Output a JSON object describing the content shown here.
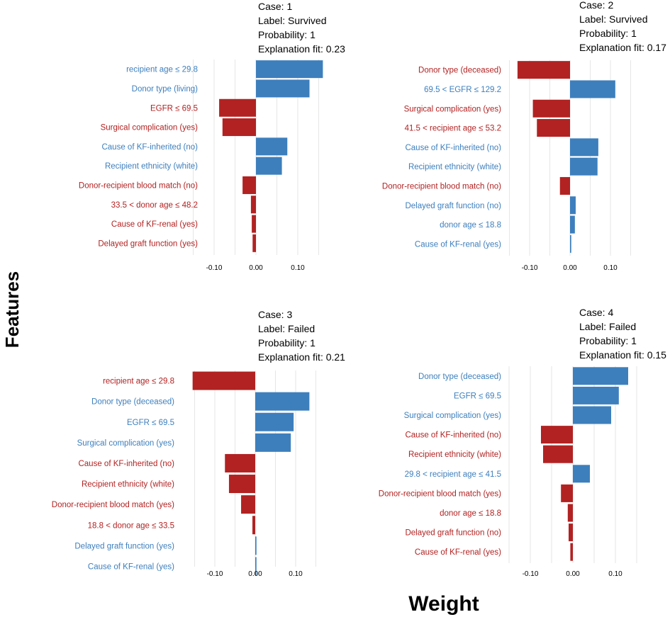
{
  "figure": {
    "y_axis_title": "Features",
    "x_axis_title": "Weight"
  },
  "colors": {
    "positive": "#3d7fbd",
    "negative": "#b22222",
    "grid": "#e6e6e6"
  },
  "chart_data": [
    {
      "type": "bar",
      "orientation": "horizontal",
      "case_lines": [
        "Case: 1",
        "Label: Survived",
        "Probability:  1",
        "Explanation fit:  0.23"
      ],
      "xlim": [
        -0.15,
        0.15
      ],
      "xticks": [
        -0.1,
        0.0,
        0.1
      ],
      "xtick_labels": [
        "-0.10",
        "0.00",
        "0.10"
      ],
      "features": [
        "recipient age ≤ 29.8",
        "Donor type (living)",
        "EGFR ≤ 69.5",
        "Surgical complication (yes)",
        "Cause of KF-inherited (no)",
        "Recipient ethnicity (white)",
        "Donor-recipient blood match (no)",
        "33.5 < donor age ≤ 48.2",
        "Cause of KF-renal (yes)",
        "Delayed graft function (yes)"
      ],
      "values": [
        0.16,
        0.128,
        -0.088,
        -0.08,
        0.075,
        0.062,
        -0.032,
        -0.012,
        -0.01,
        -0.008
      ]
    },
    {
      "type": "bar",
      "orientation": "horizontal",
      "case_lines": [
        "Case: 2",
        "Label: Survived",
        "Probability:  1",
        "Explanation fit:  0.17"
      ],
      "xlim": [
        -0.15,
        0.15
      ],
      "xticks": [
        -0.1,
        0.0,
        0.1
      ],
      "xtick_labels": [
        "-0.10",
        "0.00",
        "0.10"
      ],
      "features": [
        "Donor type (deceased)",
        "69.5 < EGFR ≤ 129.2",
        "Surgical complication (yes)",
        "41.5 < recipient age ≤ 53.2",
        "Cause of KF-inherited (no)",
        "Recipient ethnicity (white)",
        "Donor-recipient blood match (no)",
        "Delayed graft function (no)",
        "donor age ≤ 18.8",
        "Cause of KF-renal (yes)"
      ],
      "values": [
        -0.13,
        0.112,
        -0.092,
        -0.082,
        0.07,
        0.068,
        -0.025,
        0.014,
        0.012,
        0.003
      ]
    },
    {
      "type": "bar",
      "orientation": "horizontal",
      "case_lines": [
        "Case: 3",
        "Label: Failed",
        "Probability:  1",
        "Explanation fit:  0.21"
      ],
      "xlim": [
        -0.15,
        0.15
      ],
      "xticks": [
        -0.1,
        0.0,
        0.1
      ],
      "xtick_labels": [
        "-0.10",
        "0.00",
        "0.10"
      ],
      "features": [
        "recipient age ≤ 29.8",
        "Donor type (deceased)",
        "EGFR  ≤  69.5",
        "Surgical complication (yes)",
        "Cause of KF-inherited (no)",
        "Recipient ethnicity (white)",
        "Donor-recipient blood match (yes)",
        "18.8 < donor age  ≤ 33.5",
        "Delayed graft function (yes)",
        "Cause of KF-renal (yes)"
      ],
      "values": [
        -0.155,
        0.134,
        0.095,
        0.088,
        -0.075,
        -0.065,
        -0.035,
        -0.007,
        0.003,
        0.003
      ]
    },
    {
      "type": "bar",
      "orientation": "horizontal",
      "case_lines": [
        "Case: 4",
        "Label: Failed",
        "Probability:  1",
        "Explanation fit:  0.15"
      ],
      "xlim": [
        -0.15,
        0.15
      ],
      "xticks": [
        -0.1,
        0.0,
        0.1
      ],
      "xtick_labels": [
        "-0.10",
        "0.00",
        "0.10"
      ],
      "features": [
        "Donor type (deceased)",
        "EGFR  ≤  69.5",
        "Surgical complication (yes)",
        "Cause of KF-inherited (no)",
        "Recipient ethnicity (white)",
        "29.8 < recipient age ≤ 41.5",
        "Donor-recipient blood match (yes)",
        "donor age  ≤ 18.8",
        "Delayed graft function (no)",
        "Cause of KF-renal (yes)"
      ],
      "values": [
        0.13,
        0.108,
        0.09,
        -0.075,
        -0.07,
        0.04,
        -0.028,
        -0.012,
        -0.01,
        -0.006
      ]
    }
  ]
}
